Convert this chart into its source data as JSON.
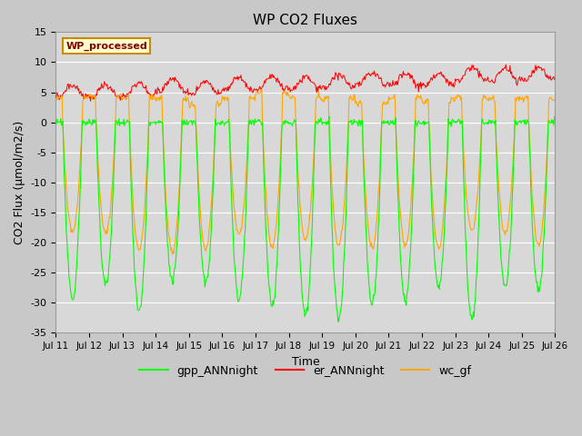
{
  "title": "WP CO2 Fluxes",
  "xlabel": "Time",
  "ylabel": "CO2 Flux (μmol/m2/s)",
  "ylim": [
    -35,
    15
  ],
  "background_color": "#c8c8c8",
  "plot_bg_color": "#d8d8d8",
  "grid_color": "#ffffff",
  "legend_label": "WP_processed",
  "legend_text_color": "#800000",
  "legend_box_color": "#ffffcc",
  "series": {
    "gpp": {
      "color": "#00ff00",
      "label": "gpp_ANNnight"
    },
    "er": {
      "color": "#ff0000",
      "label": "er_ANNnight"
    },
    "wc": {
      "color": "#ffa500",
      "label": "wc_gf"
    }
  },
  "n_days": 15,
  "points_per_half_hour": 48,
  "yticks": [
    -35,
    -30,
    -25,
    -20,
    -15,
    -10,
    -5,
    0,
    5,
    10,
    15
  ],
  "xtick_labels": [
    "Jul 11",
    "Jul 12",
    "Jul 13",
    "Jul 14",
    "Jul 15",
    "Jul 16",
    "Jul 17",
    "Jul 18",
    "Jul 19",
    "Jul 20",
    "Jul 21",
    "Jul 22",
    "Jul 23",
    "Jul 24",
    "Jul 25",
    "Jul 26"
  ]
}
